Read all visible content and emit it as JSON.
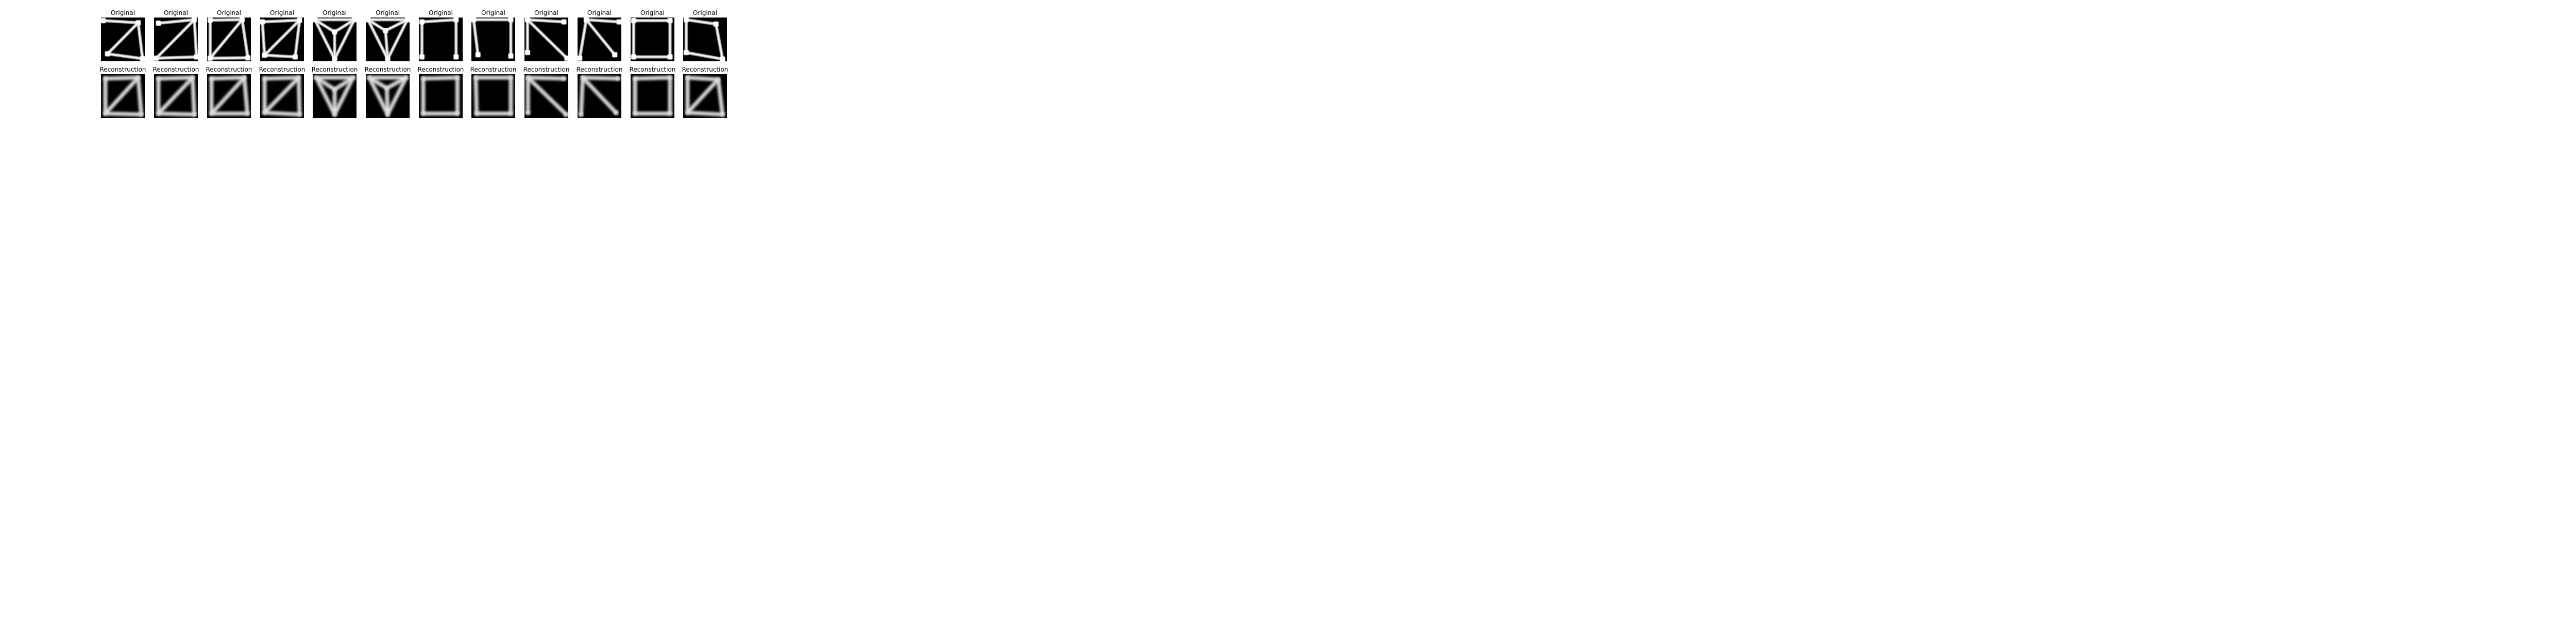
{
  "chart_data": {
    "type": "image-grid",
    "rows": [
      {
        "title": "Original",
        "panels": [
          {
            "nodes": [
              [
                0.05,
                0.07
              ],
              [
                0.85,
                0.12
              ],
              [
                0.15,
                0.83
              ],
              [
                0.95,
                0.94
              ]
            ],
            "edges": [
              [
                0,
                1
              ],
              [
                1,
                2
              ],
              [
                1,
                3
              ],
              [
                2,
                3
              ]
            ]
          },
          {
            "nodes": [
              [
                0.1,
                0.13
              ],
              [
                0.92,
                0.05
              ],
              [
                0.05,
                0.93
              ],
              [
                0.97,
                0.9
              ]
            ],
            "edges": [
              [
                0,
                1
              ],
              [
                1,
                2
              ],
              [
                1,
                3
              ],
              [
                2,
                3
              ]
            ]
          },
          {
            "nodes": [
              [
                0.07,
                0.06
              ],
              [
                0.8,
                0.05
              ],
              [
                0.07,
                0.93
              ],
              [
                0.93,
                0.92
              ]
            ],
            "edges": [
              [
                0,
                1
              ],
              [
                0,
                2
              ],
              [
                1,
                2
              ],
              [
                1,
                3
              ],
              [
                2,
                3
              ]
            ]
          },
          {
            "nodes": [
              [
                0.05,
                0.1
              ],
              [
                0.9,
                0.06
              ],
              [
                0.1,
                0.86
              ],
              [
                0.8,
                0.9
              ]
            ],
            "edges": [
              [
                0,
                1
              ],
              [
                0,
                2
              ],
              [
                1,
                2
              ],
              [
                1,
                3
              ],
              [
                2,
                3
              ]
            ]
          },
          {
            "nodes": [
              [
                0.05,
                0.05
              ],
              [
                0.95,
                0.05
              ],
              [
                0.5,
                0.33
              ],
              [
                0.5,
                0.95
              ]
            ],
            "edges": [
              [
                0,
                1
              ],
              [
                0,
                2
              ],
              [
                1,
                2
              ],
              [
                0,
                3
              ],
              [
                1,
                3
              ],
              [
                2,
                3
              ]
            ]
          },
          {
            "nodes": [
              [
                0.05,
                0.05
              ],
              [
                0.95,
                0.05
              ],
              [
                0.45,
                0.3
              ],
              [
                0.5,
                0.95
              ]
            ],
            "edges": [
              [
                0,
                1
              ],
              [
                0,
                2
              ],
              [
                1,
                2
              ],
              [
                0,
                3
              ],
              [
                1,
                3
              ],
              [
                2,
                3
              ]
            ]
          },
          {
            "nodes": [
              [
                0.07,
                0.1
              ],
              [
                0.85,
                0.05
              ],
              [
                0.07,
                0.9
              ],
              [
                0.85,
                0.9
              ]
            ],
            "edges": [
              [
                0,
                1
              ],
              [
                0,
                2
              ],
              [
                1,
                3
              ]
            ]
          },
          {
            "nodes": [
              [
                0.05,
                0.05
              ],
              [
                0.9,
                0.05
              ],
              [
                0.15,
                0.85
              ],
              [
                0.9,
                0.88
              ]
            ],
            "edges": [
              [
                0,
                1
              ],
              [
                0,
                2
              ],
              [
                1,
                3
              ]
            ]
          },
          {
            "nodes": [
              [
                0.07,
                0.05
              ],
              [
                0.9,
                0.1
              ],
              [
                0.07,
                0.8
              ],
              [
                0.97,
                0.93
              ]
            ],
            "edges": [
              [
                0,
                1
              ],
              [
                0,
                2
              ],
              [
                0,
                3
              ]
            ]
          },
          {
            "nodes": [
              [
                0.2,
                0.05
              ],
              [
                0.95,
                0.1
              ],
              [
                0.05,
                0.93
              ],
              [
                0.85,
                0.85
              ]
            ],
            "edges": [
              [
                0,
                1
              ],
              [
                0,
                2
              ],
              [
                0,
                3
              ]
            ]
          },
          {
            "nodes": [
              [
                0.07,
                0.07
              ],
              [
                0.9,
                0.07
              ],
              [
                0.07,
                0.9
              ],
              [
                0.9,
                0.9
              ]
            ],
            "edges": [
              [
                0,
                1
              ],
              [
                0,
                2
              ],
              [
                1,
                3
              ],
              [
                2,
                3
              ]
            ]
          },
          {
            "nodes": [
              [
                0.07,
                0.05
              ],
              [
                0.75,
                0.15
              ],
              [
                0.07,
                0.8
              ],
              [
                0.9,
                0.95
              ]
            ],
            "edges": [
              [
                0,
                1
              ],
              [
                0,
                2
              ],
              [
                1,
                3
              ],
              [
                2,
                3
              ]
            ]
          }
        ]
      },
      {
        "title": "Reconstruction",
        "panels": [
          {
            "nodes": [
              [
                0.1,
                0.1
              ],
              [
                0.85,
                0.08
              ],
              [
                0.1,
                0.9
              ],
              [
                0.92,
                0.92
              ]
            ],
            "edges": [
              [
                0,
                1
              ],
              [
                0,
                2
              ],
              [
                1,
                2
              ],
              [
                1,
                3
              ],
              [
                2,
                3
              ]
            ]
          },
          {
            "nodes": [
              [
                0.1,
                0.1
              ],
              [
                0.88,
                0.08
              ],
              [
                0.1,
                0.9
              ],
              [
                0.92,
                0.92
              ]
            ],
            "edges": [
              [
                0,
                1
              ],
              [
                0,
                2
              ],
              [
                1,
                2
              ],
              [
                1,
                3
              ],
              [
                2,
                3
              ]
            ]
          },
          {
            "nodes": [
              [
                0.1,
                0.1
              ],
              [
                0.85,
                0.08
              ],
              [
                0.1,
                0.9
              ],
              [
                0.92,
                0.9
              ]
            ],
            "edges": [
              [
                0,
                1
              ],
              [
                0,
                2
              ],
              [
                1,
                2
              ],
              [
                1,
                3
              ],
              [
                2,
                3
              ]
            ]
          },
          {
            "nodes": [
              [
                0.1,
                0.1
              ],
              [
                0.88,
                0.08
              ],
              [
                0.1,
                0.88
              ],
              [
                0.9,
                0.92
              ]
            ],
            "edges": [
              [
                0,
                1
              ],
              [
                0,
                2
              ],
              [
                1,
                2
              ],
              [
                1,
                3
              ],
              [
                2,
                3
              ]
            ]
          },
          {
            "nodes": [
              [
                0.08,
                0.08
              ],
              [
                0.92,
                0.08
              ],
              [
                0.5,
                0.35
              ],
              [
                0.5,
                0.92
              ]
            ],
            "edges": [
              [
                0,
                1
              ],
              [
                0,
                2
              ],
              [
                1,
                2
              ],
              [
                0,
                3
              ],
              [
                1,
                3
              ],
              [
                2,
                3
              ]
            ]
          },
          {
            "nodes": [
              [
                0.08,
                0.08
              ],
              [
                0.92,
                0.08
              ],
              [
                0.48,
                0.32
              ],
              [
                0.5,
                0.92
              ]
            ],
            "edges": [
              [
                0,
                1
              ],
              [
                0,
                2
              ],
              [
                1,
                2
              ],
              [
                0,
                3
              ],
              [
                1,
                3
              ],
              [
                2,
                3
              ]
            ]
          },
          {
            "nodes": [
              [
                0.1,
                0.1
              ],
              [
                0.88,
                0.08
              ],
              [
                0.1,
                0.9
              ],
              [
                0.88,
                0.9
              ]
            ],
            "edges": [
              [
                0,
                1
              ],
              [
                0,
                2
              ],
              [
                1,
                3
              ],
              [
                2,
                3
              ]
            ]
          },
          {
            "nodes": [
              [
                0.1,
                0.08
              ],
              [
                0.9,
                0.08
              ],
              [
                0.12,
                0.9
              ],
              [
                0.9,
                0.9
              ]
            ],
            "edges": [
              [
                0,
                1
              ],
              [
                0,
                2
              ],
              [
                1,
                3
              ],
              [
                2,
                3
              ]
            ]
          },
          {
            "nodes": [
              [
                0.08,
                0.08
              ],
              [
                0.9,
                0.1
              ],
              [
                0.08,
                0.88
              ],
              [
                0.95,
                0.92
              ]
            ],
            "edges": [
              [
                0,
                1
              ],
              [
                0,
                2
              ],
              [
                0,
                3
              ]
            ]
          },
          {
            "nodes": [
              [
                0.12,
                0.08
              ],
              [
                0.92,
                0.1
              ],
              [
                0.08,
                0.92
              ],
              [
                0.88,
                0.88
              ]
            ],
            "edges": [
              [
                0,
                1
              ],
              [
                0,
                2
              ],
              [
                0,
                3
              ]
            ]
          },
          {
            "nodes": [
              [
                0.1,
                0.1
              ],
              [
                0.9,
                0.08
              ],
              [
                0.1,
                0.9
              ],
              [
                0.9,
                0.9
              ]
            ],
            "edges": [
              [
                0,
                1
              ],
              [
                0,
                2
              ],
              [
                1,
                3
              ],
              [
                2,
                3
              ]
            ]
          },
          {
            "nodes": [
              [
                0.1,
                0.08
              ],
              [
                0.8,
                0.12
              ],
              [
                0.1,
                0.88
              ],
              [
                0.9,
                0.92
              ]
            ],
            "edges": [
              [
                0,
                1
              ],
              [
                0,
                2
              ],
              [
                1,
                3
              ],
              [
                2,
                3
              ],
              [
                1,
                2
              ]
            ]
          }
        ]
      }
    ]
  }
}
